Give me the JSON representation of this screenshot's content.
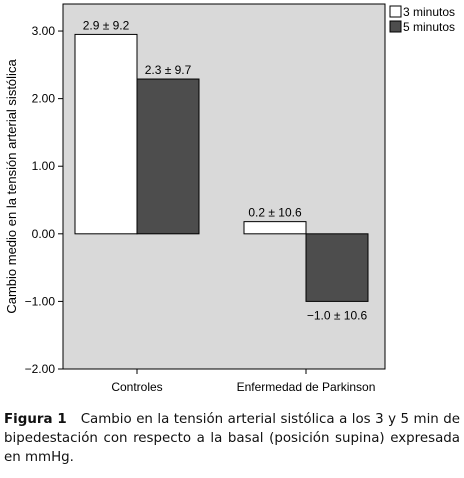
{
  "chart_data": {
    "type": "bar",
    "ylabel": "Cambio medio en la tensión arterial sistólica",
    "xlabel": "",
    "ylim": [
      -2.0,
      3.4
    ],
    "yticks": [
      3.0,
      2.0,
      1.0,
      0.0,
      -1.0,
      -2.0
    ],
    "ytick_labels": [
      "3.00",
      "2.00",
      "1.00",
      "0.00",
      "−1.00",
      "−2.00"
    ],
    "categories": [
      "Controles",
      "Enfermedad de Parkinson"
    ],
    "series": [
      {
        "name": "3 minutos",
        "color": "#ffffff",
        "values": [
          2.95,
          0.18
        ],
        "labels": [
          "2.9 ± 9.2",
          "0.2 ± 10.6"
        ]
      },
      {
        "name": "5 minutos",
        "color": "#4d4d4d",
        "values": [
          2.29,
          -1.0
        ],
        "labels": [
          "2.3 ± 9.7",
          "−1.0 ± 10.6"
        ]
      }
    ],
    "legend": "top-right",
    "plot_background": "#d9d9d9",
    "grid": false
  },
  "caption": {
    "label": "Figura 1",
    "text": "Cambio en la tensión arterial sistólica a los 3 y 5 min de bipedestación con respecto a la basal (posición supina) expresada en mmHg."
  }
}
